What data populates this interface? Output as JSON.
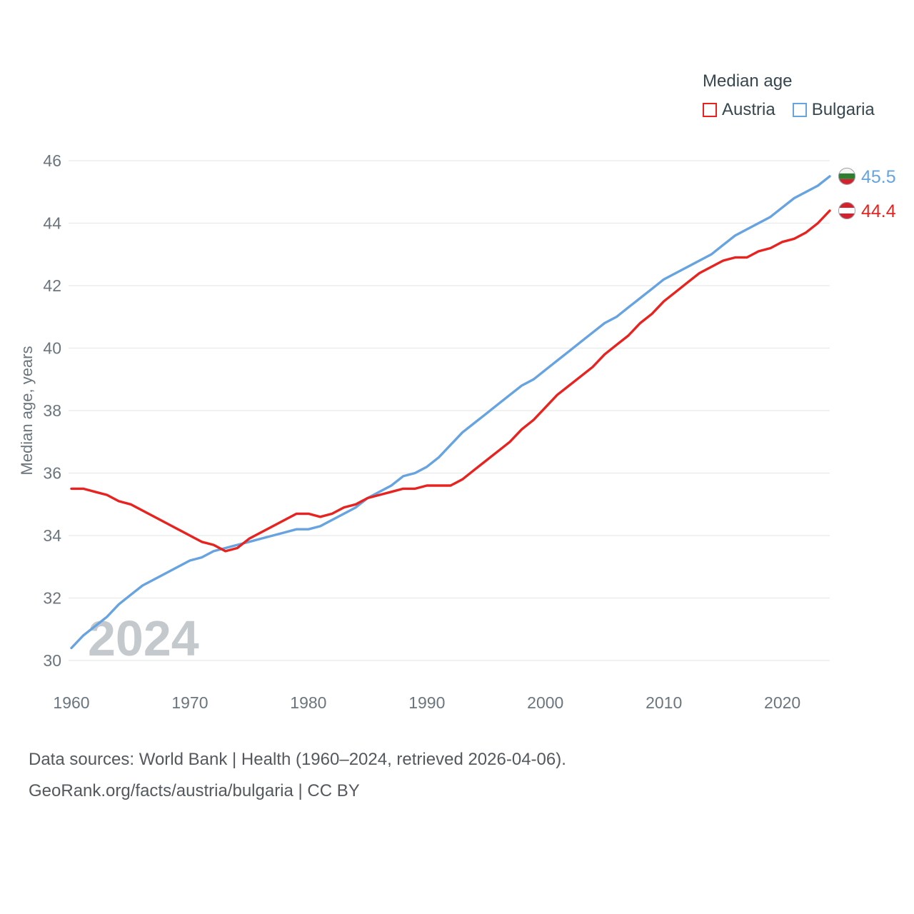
{
  "legend": {
    "title": "Median age",
    "items": [
      {
        "label": "Austria",
        "color": "#e8231f"
      },
      {
        "label": "Bulgaria",
        "color": "#66a3e0"
      }
    ]
  },
  "chart_data": {
    "type": "line",
    "title": "Median age",
    "ylabel": "Median age, years",
    "x_start": 1960,
    "x_end": 2024,
    "x_ticks": [
      1960,
      1970,
      1980,
      1990,
      2000,
      2010,
      2020
    ],
    "y_ticks": [
      30,
      32,
      34,
      36,
      38,
      40,
      42,
      44,
      46
    ],
    "ylim": [
      30,
      46
    ],
    "grid": true,
    "legend_position": "top-right",
    "watermark": "2024",
    "series": [
      {
        "name": "Austria",
        "color": "#e8231f",
        "end_label": "44.4",
        "flag": "austria-flag-icon",
        "flag_stripes": [
          "#d3212d",
          "#ffffff",
          "#d3212d"
        ],
        "values": [
          35.5,
          35.5,
          35.4,
          35.3,
          35.1,
          35.0,
          34.8,
          34.6,
          34.4,
          34.2,
          34.0,
          33.8,
          33.7,
          33.5,
          33.6,
          33.9,
          34.1,
          34.3,
          34.5,
          34.7,
          34.7,
          34.6,
          34.7,
          34.9,
          35.0,
          35.2,
          35.3,
          35.4,
          35.5,
          35.5,
          35.6,
          35.6,
          35.6,
          35.8,
          36.1,
          36.4,
          36.7,
          37.0,
          37.4,
          37.7,
          38.1,
          38.5,
          38.8,
          39.1,
          39.4,
          39.8,
          40.1,
          40.4,
          40.8,
          41.1,
          41.5,
          41.8,
          42.1,
          42.4,
          42.6,
          42.8,
          42.9,
          42.9,
          43.1,
          43.2,
          43.4,
          43.5,
          43.7,
          44.0,
          44.4
        ]
      },
      {
        "name": "Bulgaria",
        "color": "#66a3e0",
        "end_label": "45.5",
        "flag": "bulgaria-flag-icon",
        "flag_stripes": [
          "#f5f5f5",
          "#2e7d32",
          "#d3212d"
        ],
        "values": [
          30.4,
          30.8,
          31.1,
          31.4,
          31.8,
          32.1,
          32.4,
          32.6,
          32.8,
          33.0,
          33.2,
          33.3,
          33.5,
          33.6,
          33.7,
          33.8,
          33.9,
          34.0,
          34.1,
          34.2,
          34.2,
          34.3,
          34.5,
          34.7,
          34.9,
          35.2,
          35.4,
          35.6,
          35.9,
          36.0,
          36.2,
          36.5,
          36.9,
          37.3,
          37.6,
          37.9,
          38.2,
          38.5,
          38.8,
          39.0,
          39.3,
          39.6,
          39.9,
          40.2,
          40.5,
          40.8,
          41.0,
          41.3,
          41.6,
          41.9,
          42.2,
          42.4,
          42.6,
          42.8,
          43.0,
          43.3,
          43.6,
          43.8,
          44.0,
          44.2,
          44.5,
          44.8,
          45.0,
          45.2,
          45.5
        ]
      }
    ]
  },
  "footer": {
    "line1": "Data sources: World Bank | Health (1960–2024, retrieved 2026-04-06).",
    "line2": "GeoRank.org/facts/austria/bulgaria | CC BY"
  }
}
